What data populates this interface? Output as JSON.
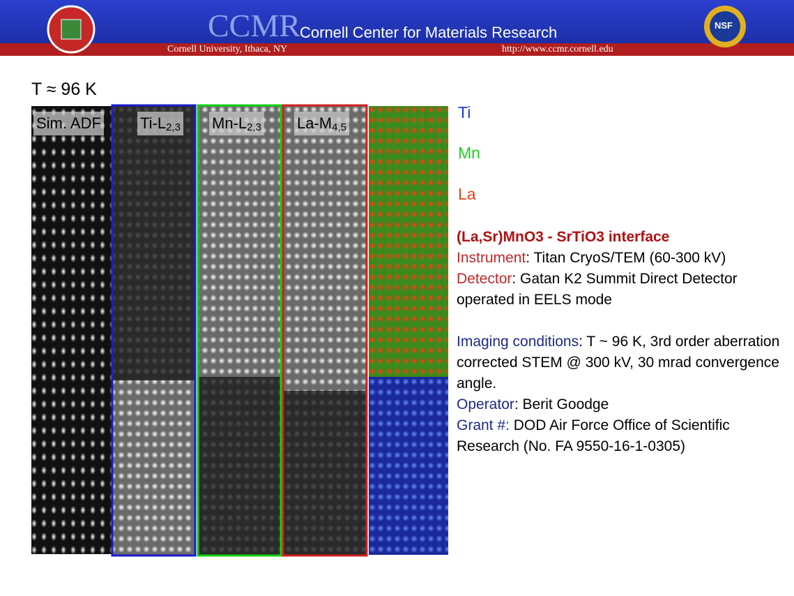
{
  "header": {
    "logo_text": "CCMR",
    "title": "Cornell Center for Materials Research",
    "subtitle": "Cornell University, Ithaca, NY",
    "url": "http://www.ccmr.cornell.edu",
    "nsf": "NSF"
  },
  "temperature": "T ≈ 96 K",
  "panels": [
    {
      "label": "Sim. ADF"
    },
    {
      "label": "Ti-L",
      "sub": "2,3"
    },
    {
      "label": "Mn-L",
      "sub": "2,3"
    },
    {
      "label": "La-M",
      "sub": "4,5"
    }
  ],
  "legend": [
    "Ti",
    "Mn",
    "La"
  ],
  "info": {
    "title": "(La,Sr)MnO3 - SrTiO3 interface",
    "lines": [
      {
        "key": "Instrument",
        "text": ": Titan CryoS/TEM (60-300 kV)"
      },
      {
        "key": "Detector",
        "text": ": Gatan K2 Summit Direct Detector operated in EELS mode"
      },
      {
        "key": "Imaging conditions",
        "text": ": T ~ 96 K, 3rd order aberration corrected STEM @ 300 kV, 30 mrad convergence angle."
      },
      {
        "key": "Operator",
        "text": ": Berit Goodge"
      },
      {
        "key": "Grant #:",
        "text": " DOD Air Force Office of Scientific Research (No. FA 9550-16-1-0305)"
      }
    ]
  }
}
